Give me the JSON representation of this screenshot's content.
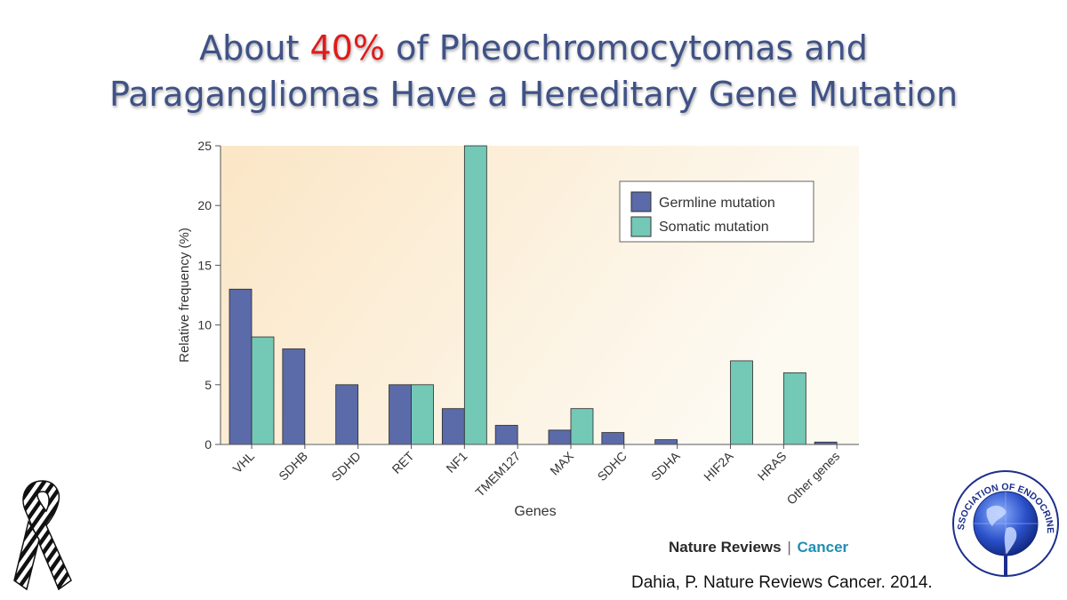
{
  "slide": {
    "title_line1_before": "About ",
    "title_highlight": "40%",
    "title_line1_after": " of Pheochromocytomas and",
    "title_line2": "Paragangliomas Have a Hereditary Gene Mutation",
    "highlight_color": "#e01b1b",
    "title_color": "#3f5287"
  },
  "chart_data": {
    "type": "bar",
    "xlabel": "Genes",
    "ylabel": "Relative frequency (%)",
    "ylim": [
      0,
      25
    ],
    "yticks": [
      0,
      5,
      10,
      15,
      20,
      25
    ],
    "categories": [
      "VHL",
      "SDHB",
      "SDHD",
      "RET",
      "NF1",
      "TMEM127",
      "MAX",
      "SDHC",
      "SDHA",
      "HIF2A",
      "HRAS",
      "Other genes"
    ],
    "series": [
      {
        "name": "Germline mutation",
        "color": "#5b6aa8",
        "values": [
          13,
          8,
          5,
          5,
          3,
          1.6,
          1.2,
          1,
          0.4,
          0,
          0,
          0.2
        ]
      },
      {
        "name": "Somatic mutation",
        "color": "#74c8b6",
        "values": [
          9,
          0,
          0,
          5,
          25,
          0,
          3,
          0,
          0,
          7,
          6,
          0
        ]
      }
    ],
    "legend_position": "top-right",
    "grid": false,
    "background_gradient": [
      "#fbe6c6",
      "#fdfaf2"
    ]
  },
  "source": {
    "journal_name": "Nature Reviews",
    "separator": "|",
    "journal_section": "Cancer",
    "citation": "Dahia, P. Nature Reviews Cancer. 2014."
  },
  "logos": {
    "ribbon_icon": "zebra-ribbon-icon",
    "seal_icon": "globe-seal-icon",
    "seal_text": "AMERICAN ASSOCIATION OF ENDOCRINE SURGEONS"
  }
}
